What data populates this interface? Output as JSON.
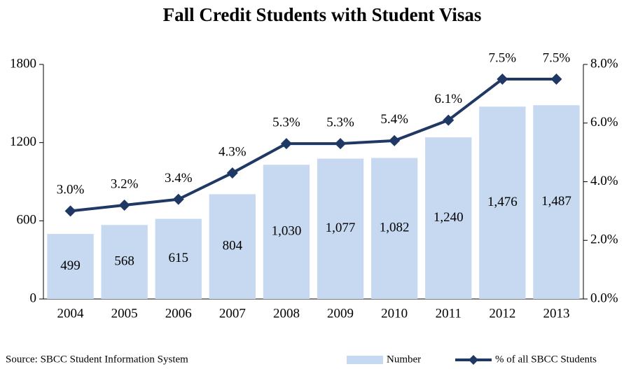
{
  "chart_data": {
    "type": "bar",
    "title": "Fall Credit Students with Student Visas",
    "source": "Source: SBCC Student Information System",
    "categories": [
      "2004",
      "2005",
      "2006",
      "2007",
      "2008",
      "2009",
      "2010",
      "2011",
      "2012",
      "2013"
    ],
    "series": [
      {
        "name": "Number",
        "type": "bar",
        "color": "#c6d9f1",
        "values": [
          499,
          568,
          615,
          804,
          1030,
          1077,
          1082,
          1240,
          1476,
          1487
        ],
        "value_labels": [
          "499",
          "568",
          "615",
          "804",
          "1,030",
          "1,077",
          "1,082",
          "1,240",
          "1,476",
          "1,487"
        ]
      },
      {
        "name": "% of all SBCC Students",
        "type": "line",
        "axis": "y2",
        "color": "#1f3864",
        "values": [
          3.0,
          3.2,
          3.4,
          4.3,
          5.3,
          5.3,
          5.4,
          6.1,
          7.5,
          7.5
        ],
        "value_labels": [
          "3.0%",
          "3.2%",
          "3.4%",
          "4.3%",
          "5.3%",
          "5.3%",
          "5.4%",
          "6.1%",
          "7.5%",
          "7.5%"
        ]
      }
    ],
    "ylim": [
      0,
      1800
    ],
    "yticks": [
      0,
      600,
      1200,
      1800
    ],
    "y2lim": [
      0,
      8
    ],
    "y2ticks": [
      {
        "value": 0,
        "label": "0.0%"
      },
      {
        "value": 2,
        "label": "2.0%"
      },
      {
        "value": 4,
        "label": "4.0%"
      },
      {
        "value": 6,
        "label": "6.0%"
      },
      {
        "value": 8,
        "label": "8.0%"
      }
    ],
    "grid": false,
    "legend": "bottom-right"
  }
}
